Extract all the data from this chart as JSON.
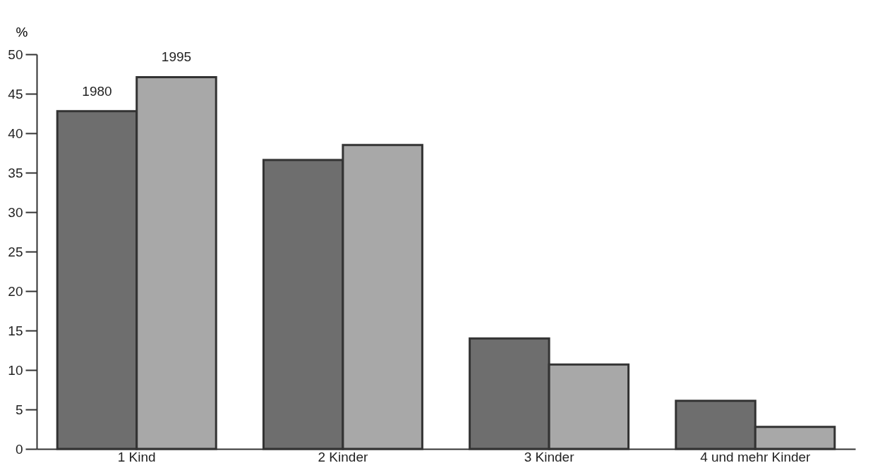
{
  "chart_data": {
    "type": "bar",
    "ylabel": "%",
    "categories": [
      "1 Kind",
      "2 Kinder",
      "3 Kinder",
      "4 und mehr Kinder"
    ],
    "series": [
      {
        "name": "1980",
        "color": "#6e6e6e",
        "values": [
          42.8,
          36.6,
          14,
          6.1
        ]
      },
      {
        "name": "1995",
        "color": "#a8a8a8",
        "values": [
          47.1,
          38.5,
          10.7,
          2.8
        ]
      }
    ],
    "ylim": [
      0,
      50
    ],
    "yticks": [
      0,
      5,
      10,
      15,
      20,
      25,
      30,
      35,
      40,
      45,
      50
    ],
    "grid": false,
    "legend": false
  }
}
